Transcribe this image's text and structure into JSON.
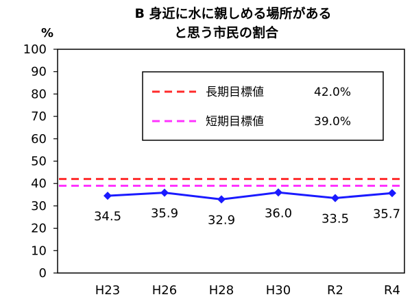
{
  "chart_data": {
    "type": "line",
    "title_line1": "B 身近に水に親しめる場所がある",
    "title_line2": "と思う市民の割合",
    "unit": "%",
    "categories": [
      "H23",
      "H26",
      "H28",
      "H30",
      "R2",
      "R4"
    ],
    "yticks": [
      "0",
      "10",
      "20",
      "30",
      "40",
      "50",
      "60",
      "70",
      "80",
      "90",
      "100"
    ],
    "ylim": [
      0,
      100
    ],
    "grid": false,
    "series": [
      {
        "name": "",
        "values": [
          34.5,
          35.9,
          32.9,
          36.0,
          33.5,
          35.7
        ],
        "data_labels": [
          "34.5",
          "35.9",
          "32.9",
          "36.0",
          "33.5",
          "35.7"
        ],
        "color": "#1a1aff"
      }
    ],
    "reference_lines": [
      {
        "name": "長期目標値",
        "value_label": "42.0%",
        "value": 42.0,
        "color": "#ff2a2a"
      },
      {
        "name": "短期目標値",
        "value_label": "39.0%",
        "value": 39.0,
        "color": "#ff33ff"
      }
    ],
    "legend_position": "top-right"
  }
}
